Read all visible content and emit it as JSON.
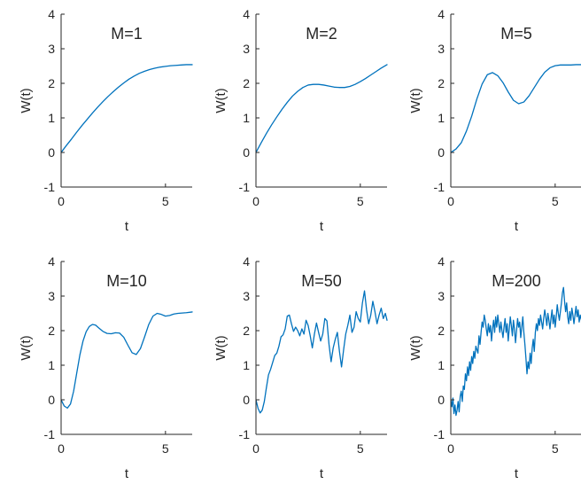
{
  "chart_data": [
    {
      "type": "line",
      "title": "M=1",
      "xlabel": "t",
      "ylabel": "W(t)",
      "xlim": [
        0,
        6.28
      ],
      "ylim": [
        -1,
        4
      ],
      "xticks": [
        0,
        5
      ],
      "yticks": [
        -1,
        0,
        1,
        2,
        3,
        4
      ],
      "grid": false,
      "series": [
        {
          "color": "#0072BD",
          "x": [
            0,
            0.25,
            0.5,
            0.75,
            1.0,
            1.25,
            1.5,
            1.75,
            2.0,
            2.25,
            2.5,
            2.75,
            3.0,
            3.25,
            3.5,
            3.75,
            4.0,
            4.25,
            4.5,
            4.75,
            5.0,
            5.25,
            5.5,
            5.75,
            6.0,
            6.28
          ],
          "y": [
            0.0,
            0.2,
            0.39,
            0.59,
            0.78,
            0.96,
            1.14,
            1.31,
            1.47,
            1.62,
            1.76,
            1.89,
            2.01,
            2.12,
            2.21,
            2.29,
            2.35,
            2.4,
            2.44,
            2.47,
            2.49,
            2.51,
            2.52,
            2.53,
            2.54,
            2.54
          ]
        }
      ]
    },
    {
      "type": "line",
      "title": "M=2",
      "xlabel": "t",
      "ylabel": "W(t)",
      "xlim": [
        0,
        6.28
      ],
      "ylim": [
        -1,
        4
      ],
      "xticks": [
        0,
        5
      ],
      "yticks": [
        -1,
        0,
        1,
        2,
        3,
        4
      ],
      "grid": false,
      "series": [
        {
          "color": "#0072BD",
          "x": [
            0,
            0.25,
            0.5,
            0.75,
            1.0,
            1.25,
            1.5,
            1.75,
            2.0,
            2.25,
            2.5,
            2.75,
            3.0,
            3.25,
            3.5,
            3.75,
            4.0,
            4.25,
            4.5,
            4.75,
            5.0,
            5.25,
            5.5,
            5.75,
            6.0,
            6.28
          ],
          "y": [
            0.0,
            0.28,
            0.55,
            0.8,
            1.03,
            1.25,
            1.45,
            1.63,
            1.77,
            1.88,
            1.95,
            1.97,
            1.97,
            1.95,
            1.92,
            1.89,
            1.88,
            1.88,
            1.91,
            1.97,
            2.05,
            2.14,
            2.24,
            2.34,
            2.44,
            2.54
          ]
        }
      ]
    },
    {
      "type": "line",
      "title": "M=5",
      "xlabel": "t",
      "ylabel": "W(t)",
      "xlim": [
        0,
        6.28
      ],
      "ylim": [
        -1,
        4
      ],
      "xticks": [
        0,
        5
      ],
      "yticks": [
        -1,
        0,
        1,
        2,
        3,
        4
      ],
      "grid": false,
      "series": [
        {
          "color": "#0072BD",
          "x": [
            0,
            0.25,
            0.5,
            0.75,
            1.0,
            1.25,
            1.5,
            1.75,
            2.0,
            2.25,
            2.5,
            2.75,
            3.0,
            3.25,
            3.5,
            3.75,
            4.0,
            4.25,
            4.5,
            4.75,
            5.0,
            5.25,
            5.5,
            5.75,
            6.0,
            6.28
          ],
          "y": [
            0.0,
            0.1,
            0.28,
            0.62,
            1.05,
            1.55,
            1.98,
            2.25,
            2.31,
            2.22,
            2.02,
            1.75,
            1.51,
            1.41,
            1.46,
            1.64,
            1.88,
            2.12,
            2.32,
            2.45,
            2.51,
            2.53,
            2.53,
            2.53,
            2.54,
            2.54
          ]
        }
      ]
    },
    {
      "type": "line",
      "title": "M=10",
      "xlabel": "t",
      "ylabel": "W(t)",
      "xlim": [
        0,
        6.28
      ],
      "ylim": [
        -1,
        4
      ],
      "xticks": [
        0,
        5
      ],
      "yticks": [
        -1,
        0,
        1,
        2,
        3,
        4
      ],
      "grid": false,
      "series": [
        {
          "color": "#0072BD",
          "x": [
            0,
            0.15,
            0.3,
            0.45,
            0.6,
            0.75,
            0.9,
            1.05,
            1.2,
            1.35,
            1.5,
            1.65,
            1.8,
            2.0,
            2.2,
            2.4,
            2.6,
            2.8,
            3.0,
            3.2,
            3.4,
            3.6,
            3.8,
            4.0,
            4.2,
            4.4,
            4.6,
            4.8,
            5.0,
            5.2,
            5.4,
            5.6,
            5.8,
            6.0,
            6.28
          ],
          "y": [
            0.0,
            -0.18,
            -0.24,
            -0.12,
            0.25,
            0.78,
            1.3,
            1.7,
            1.97,
            2.12,
            2.18,
            2.16,
            2.08,
            1.98,
            1.92,
            1.91,
            1.94,
            1.93,
            1.81,
            1.58,
            1.36,
            1.31,
            1.48,
            1.82,
            2.18,
            2.42,
            2.5,
            2.47,
            2.42,
            2.44,
            2.48,
            2.5,
            2.51,
            2.52,
            2.54
          ]
        }
      ]
    },
    {
      "type": "line",
      "title": "M=50",
      "xlabel": "t",
      "ylabel": "W(t)",
      "xlim": [
        0,
        6.28
      ],
      "ylim": [
        -1,
        4
      ],
      "xticks": [
        0,
        5
      ],
      "yticks": [
        -1,
        0,
        1,
        2,
        3,
        4
      ],
      "grid": false,
      "series": [
        {
          "color": "#0072BD",
          "x": [
            0,
            0.1,
            0.2,
            0.3,
            0.4,
            0.5,
            0.6,
            0.7,
            0.8,
            0.9,
            1.0,
            1.1,
            1.2,
            1.3,
            1.4,
            1.5,
            1.6,
            1.7,
            1.8,
            1.9,
            2.0,
            2.1,
            2.2,
            2.3,
            2.4,
            2.5,
            2.6,
            2.7,
            2.8,
            2.9,
            3.0,
            3.1,
            3.2,
            3.3,
            3.4,
            3.5,
            3.6,
            3.7,
            3.8,
            3.9,
            4.0,
            4.1,
            4.2,
            4.3,
            4.4,
            4.5,
            4.6,
            4.7,
            4.8,
            4.9,
            5.0,
            5.1,
            5.2,
            5.3,
            5.4,
            5.5,
            5.6,
            5.7,
            5.8,
            5.9,
            6.0,
            6.1,
            6.2,
            6.28
          ],
          "y": [
            0.0,
            -0.25,
            -0.38,
            -0.3,
            -0.05,
            0.35,
            0.72,
            0.88,
            1.08,
            1.28,
            1.35,
            1.55,
            1.82,
            1.88,
            2.05,
            2.42,
            2.45,
            2.2,
            1.98,
            2.1,
            2.0,
            1.85,
            2.05,
            1.9,
            2.3,
            2.15,
            1.85,
            1.5,
            1.9,
            2.22,
            1.95,
            1.7,
            1.9,
            2.35,
            2.28,
            1.6,
            1.1,
            1.5,
            1.75,
            1.95,
            1.4,
            0.95,
            1.45,
            1.9,
            2.15,
            2.45,
            1.95,
            2.1,
            2.55,
            2.35,
            2.25,
            2.8,
            3.15,
            2.6,
            2.2,
            2.45,
            2.85,
            2.55,
            2.2,
            2.45,
            2.65,
            2.35,
            2.5,
            2.3
          ]
        }
      ]
    },
    {
      "type": "line",
      "title": "M=200",
      "xlabel": "t",
      "ylabel": "W(t)",
      "xlim": [
        0,
        6.28
      ],
      "ylim": [
        -1,
        4
      ],
      "xticks": [
        0,
        5
      ],
      "yticks": [
        -1,
        0,
        1,
        2,
        3,
        4
      ],
      "grid": false,
      "series": [
        {
          "color": "#0072BD",
          "x": [
            0,
            0.05,
            0.1,
            0.15,
            0.2,
            0.25,
            0.3,
            0.35,
            0.4,
            0.45,
            0.5,
            0.55,
            0.6,
            0.65,
            0.7,
            0.75,
            0.8,
            0.85,
            0.9,
            0.95,
            1.0,
            1.05,
            1.1,
            1.15,
            1.2,
            1.25,
            1.3,
            1.35,
            1.4,
            1.45,
            1.5,
            1.55,
            1.6,
            1.65,
            1.7,
            1.75,
            1.8,
            1.85,
            1.9,
            1.95,
            2.0,
            2.05,
            2.1,
            2.15,
            2.2,
            2.25,
            2.3,
            2.35,
            2.4,
            2.45,
            2.5,
            2.55,
            2.6,
            2.65,
            2.7,
            2.75,
            2.8,
            2.85,
            2.9,
            2.95,
            3.0,
            3.05,
            3.1,
            3.15,
            3.2,
            3.25,
            3.3,
            3.35,
            3.4,
            3.45,
            3.5,
            3.55,
            3.6,
            3.65,
            3.7,
            3.75,
            3.8,
            3.85,
            3.9,
            3.95,
            4.0,
            4.05,
            4.1,
            4.15,
            4.2,
            4.25,
            4.3,
            4.35,
            4.4,
            4.45,
            4.5,
            4.55,
            4.6,
            4.65,
            4.7,
            4.75,
            4.8,
            4.85,
            4.9,
            4.95,
            5.0,
            5.05,
            5.1,
            5.15,
            5.2,
            5.25,
            5.3,
            5.35,
            5.4,
            5.45,
            5.5,
            5.55,
            5.6,
            5.65,
            5.7,
            5.75,
            5.8,
            5.85,
            5.9,
            5.95,
            6.0,
            6.05,
            6.1,
            6.15,
            6.2,
            6.28
          ],
          "y": [
            0.0,
            -0.2,
            0.05,
            -0.4,
            -0.15,
            -0.45,
            -0.3,
            -0.05,
            -0.35,
            0.1,
            0.25,
            -0.05,
            0.4,
            0.3,
            0.75,
            0.55,
            0.95,
            0.7,
            1.1,
            0.85,
            1.25,
            1.05,
            1.4,
            1.2,
            1.55,
            1.45,
            1.35,
            1.85,
            1.6,
            1.95,
            2.25,
            2.1,
            2.45,
            2.3,
            2.05,
            1.85,
            2.2,
            1.95,
            2.15,
            1.7,
            2.05,
            2.3,
            1.95,
            2.4,
            2.1,
            2.45,
            2.2,
            1.95,
            2.25,
            2.0,
            1.8,
            2.1,
            2.35,
            1.95,
            2.2,
            1.7,
            2.05,
            2.4,
            2.15,
            1.85,
            2.3,
            2.05,
            1.65,
            2.0,
            2.35,
            2.1,
            2.25,
            1.8,
            2.1,
            2.4,
            1.95,
            1.6,
            1.2,
            0.75,
            1.1,
            0.9,
            1.35,
            1.05,
            1.5,
            1.75,
            1.4,
            1.95,
            2.2,
            2.0,
            2.35,
            2.15,
            2.45,
            2.25,
            2.05,
            2.35,
            2.6,
            2.4,
            2.15,
            2.5,
            2.3,
            2.05,
            2.35,
            2.6,
            2.2,
            2.45,
            2.1,
            2.4,
            2.75,
            2.5,
            2.3,
            2.55,
            2.8,
            3.1,
            3.25,
            2.85,
            2.55,
            2.8,
            2.4,
            2.2,
            2.55,
            2.3,
            2.65,
            2.45,
            2.2,
            2.45,
            2.7,
            2.4,
            2.6,
            2.25,
            2.45,
            2.25
          ]
        }
      ]
    }
  ]
}
